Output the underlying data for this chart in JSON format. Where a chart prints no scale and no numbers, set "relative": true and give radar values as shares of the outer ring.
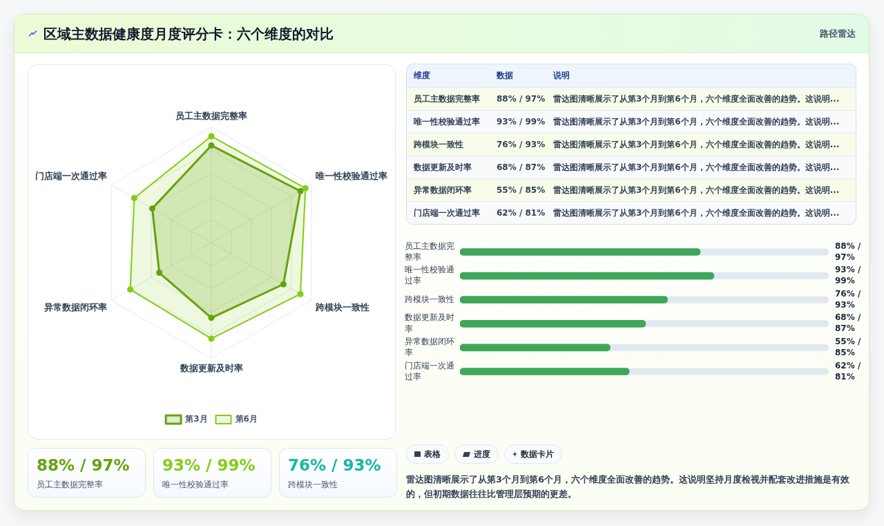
{
  "chart_data": [
    {
      "type": "other",
      "title": "区域主数据健康度月度评分卡：六个维度的对比",
      "subtitle": "路径雷达"
    },
    {
      "type": "radar",
      "categories": [
        "员工主数据完整率",
        "唯一性校验通过率",
        "跨模块一致性",
        "数据更新及时率",
        "异常数据闭环率",
        "门店端一次通过率"
      ],
      "series": [
        {
          "name": "第3月",
          "color": "#65a30d",
          "values": [
            0.84,
            0.89,
            0.72,
            0.65,
            0.52,
            0.59
          ]
        },
        {
          "name": "第6月",
          "color": "#84cc16",
          "values": [
            0.92,
            0.94,
            0.89,
            0.83,
            0.81,
            0.77
          ]
        }
      ],
      "relative": true,
      "grid": true,
      "legend": "bottom",
      "marker": "circle"
    },
    {
      "type": "other",
      "categories": [
        "员工主数据完整率",
        "唯一性校验通过率",
        "跨模块一致性",
        "数据更新及时率",
        "异常数据闭环率",
        "门店端一次通过率"
      ],
      "value_labels": [
        "88% / 97%",
        "93% / 99%",
        "76% / 93%",
        "68% / 87%",
        "55% / 85%",
        "62% / 81%"
      ],
      "annotations": [
        "维度",
        "数据",
        "说明",
        "雷达图清晰展示了从第3个月到第6个月，六个维度全面改善的趋势。这说明...",
        "雷达图清晰展示了从第3个月到第6个月，六个维度全面改善的趋势。这说明...",
        "雷达图清晰展示了从第3个月到第6个月，六个维度全面改善的趋势。这说明...",
        "雷达图清晰展示了从第3个月到第6个月，六个维度全面改善的趋势。这说明...",
        "雷达图清晰展示了从第3个月到第6个月，六个维度全面改善的趋势。这说明...",
        "雷达图清晰展示了从第3个月到第6个月，六个维度全面改善的趋势。这说明..."
      ]
    },
    {
      "type": "bar",
      "orientation": "horizontal",
      "categories": [
        "员工主数据完整率",
        "唯一性校验通过率",
        "跨模块一致性",
        "数据更新及时率",
        "异常数据闭环率",
        "门店端一次通过率"
      ],
      "values": [
        88,
        93,
        76,
        68,
        55,
        62
      ],
      "color": "#3ea65a",
      "value_labels": [
        "88% / 97%",
        "93% / 99%",
        "76% / 93%",
        "68% / 87%",
        "55% / 85%",
        "62% / 81%"
      ],
      "xlim": [
        0,
        135
      ],
      "tick_labels": "y"
    },
    {
      "type": "other",
      "categories": [
        "员工主数据完整率",
        "唯一性校验通过率",
        "跨模块一致性"
      ],
      "value_labels": [
        "88% / 97%",
        "93% / 99%",
        "76% / 93%"
      ]
    },
    {
      "type": "other",
      "annotations": [
        "表格",
        "进度",
        "数据卡片",
        "雷达图清晰展示了从第3个月到第6个月，六个维度全面改善的趋势。这说明坚持月度检视并配套改进措施是有效的，但初期数据往往比管理层预期的更差。"
      ]
    }
  ]
}
